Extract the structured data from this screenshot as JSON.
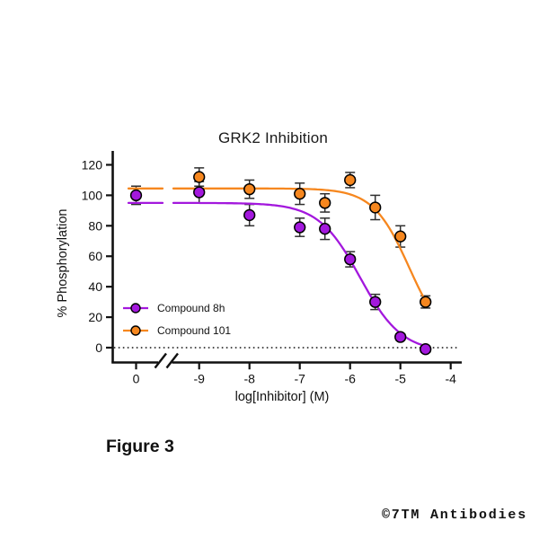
{
  "figure_label": "Figure 3",
  "watermark": "©7TM Antibodies",
  "chart_data": {
    "type": "scatter",
    "title": "GRK2 Inhibition",
    "xlabel": "log[Inhibitor] (M)",
    "ylabel": "% Phosphorylation",
    "x_tick_labels": [
      "0",
      "-9",
      "-8",
      "-7",
      "-6",
      "-5",
      "-4"
    ],
    "x_axis_break_after_control": true,
    "y_ticks": [
      0,
      20,
      40,
      60,
      80,
      100,
      120
    ],
    "ylim": [
      0,
      120
    ],
    "xlim_log": [
      -9.5,
      -4
    ],
    "grid": false,
    "zero_baseline_dotted": true,
    "legend_position": "inside lower-left",
    "axis_color": "#111111",
    "error_bar_color": "#2f2f2f",
    "series": [
      {
        "name": "Compound 8h",
        "color": "#A318DD",
        "marker": "circle",
        "control_point": {
          "x_label": "0",
          "y": 100,
          "err": 6
        },
        "points": [
          {
            "x": -9,
            "y": 102,
            "err": 7
          },
          {
            "x": -8,
            "y": 87,
            "err": 7
          },
          {
            "x": -7,
            "y": 79,
            "err": 6
          },
          {
            "x": -6.5,
            "y": 78,
            "err": 7
          },
          {
            "x": -6,
            "y": 58,
            "err": 5
          },
          {
            "x": -5.5,
            "y": 30,
            "err": 5
          },
          {
            "x": -5,
            "y": 7,
            "err": 2
          },
          {
            "x": -4.5,
            "y": -1,
            "err": 2
          }
        ],
        "fit": {
          "top": 95,
          "bottom": -3,
          "logIC50": -5.8,
          "hill": 1.05
        }
      },
      {
        "name": "Compound 101",
        "color": "#F6871F",
        "marker": "circle",
        "control_point": null,
        "points": [
          {
            "x": -9,
            "y": 112,
            "err": 6
          },
          {
            "x": -8,
            "y": 104,
            "err": 6
          },
          {
            "x": -7,
            "y": 101,
            "err": 7
          },
          {
            "x": -6.5,
            "y": 95,
            "err": 6
          },
          {
            "x": -6,
            "y": 110,
            "err": 5
          },
          {
            "x": -5.5,
            "y": 92,
            "err": 8
          },
          {
            "x": -5,
            "y": 73,
            "err": 7
          },
          {
            "x": -4.5,
            "y": 30,
            "err": 4
          }
        ],
        "fit": {
          "top": 104.5,
          "bottom": 0,
          "logIC50": -4.82,
          "hill": 1.2
        }
      }
    ]
  }
}
